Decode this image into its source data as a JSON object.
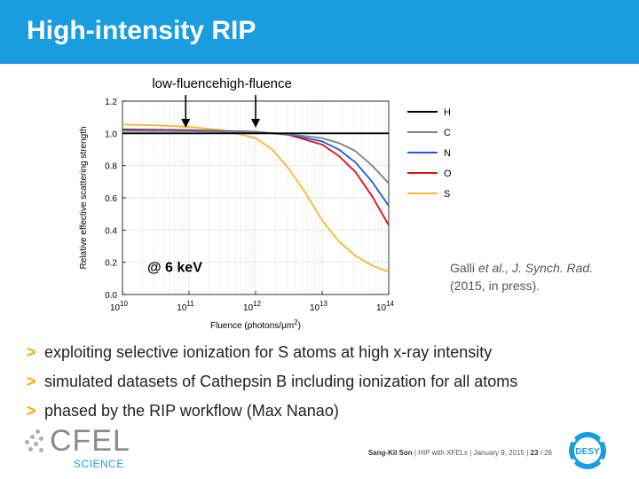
{
  "slide": {
    "title": "High-intensity RIP",
    "citation_authors": "Galli ",
    "citation_etal": "et al., J. Synch. Rad.",
    "citation_line2": "(2015, in press).",
    "bullet_marker": ">",
    "bullets": [
      "exploiting selective ionization for S atoms at high x-ray intensity",
      "simulated datasets of Cathepsin B including ionization for all atoms",
      "phased by the RIP workflow (Max Nanao)"
    ],
    "logo_text": "CFEL",
    "logo_subtext": "SCIENCE",
    "desy_text": "DESY",
    "footer": {
      "author": "Sang-Kil Son",
      "sep1": "|",
      "talk": "HIP with XFELs",
      "sep2": "|",
      "date": "January 9, 2015",
      "sep3": "|",
      "page": "23",
      "total": "/ 26"
    }
  },
  "colors": {
    "title_bg": "#1a9de0",
    "bullet_marker": "#f6a800"
  },
  "chart_data": {
    "type": "line",
    "x_scale": "log",
    "xlim": [
      10000000000.0,
      100000000000000.0
    ],
    "ylim": [
      0,
      1.2
    ],
    "xlabel_main": "Fluence (photons/",
    "xlabel_unit": "μm",
    "xlabel_sup": "2",
    "xlabel_end": ")",
    "ylabel": "Relative effective scattering strength",
    "x_ticks": [
      {
        "base": "10",
        "exp": "10"
      },
      {
        "base": "10",
        "exp": "11"
      },
      {
        "base": "10",
        "exp": "12"
      },
      {
        "base": "10",
        "exp": "13"
      },
      {
        "base": "10",
        "exp": "14"
      }
    ],
    "y_ticks": [
      "0.0",
      "0.2",
      "0.4",
      "0.6",
      "0.8",
      "1.0",
      "1.2"
    ],
    "grid": true,
    "legend_position": "right",
    "annotations": {
      "low": "low-fluence",
      "high": "high-fluence",
      "energy": "@ 6 keV"
    },
    "annotation_log_x": [
      10.95,
      12.0
    ],
    "series": [
      {
        "name": "H",
        "color": "#000000",
        "points": [
          [
            10,
            1.0
          ],
          [
            11,
            1.0
          ],
          [
            12,
            1.0
          ],
          [
            12.5,
            1.0
          ],
          [
            13,
            1.0
          ],
          [
            13.5,
            1.0
          ],
          [
            14,
            1.0
          ]
        ]
      },
      {
        "name": "C",
        "color": "#808080",
        "points": [
          [
            10,
            1.015
          ],
          [
            11,
            1.013
          ],
          [
            12,
            1.008
          ],
          [
            12.5,
            0.995
          ],
          [
            13,
            0.97
          ],
          [
            13.25,
            0.94
          ],
          [
            13.5,
            0.89
          ],
          [
            13.75,
            0.8
          ],
          [
            14,
            0.69
          ]
        ]
      },
      {
        "name": "N",
        "color": "#2255dd",
        "points": [
          [
            10,
            1.02
          ],
          [
            11,
            1.017
          ],
          [
            12,
            1.01
          ],
          [
            12.5,
            0.993
          ],
          [
            13,
            0.95
          ],
          [
            13.25,
            0.9
          ],
          [
            13.5,
            0.82
          ],
          [
            13.75,
            0.7
          ],
          [
            14,
            0.55
          ]
        ]
      },
      {
        "name": "O",
        "color": "#dd1111",
        "points": [
          [
            10,
            1.025
          ],
          [
            11,
            1.02
          ],
          [
            12,
            1.01
          ],
          [
            12.5,
            0.99
          ],
          [
            13,
            0.93
          ],
          [
            13.25,
            0.86
          ],
          [
            13.5,
            0.76
          ],
          [
            13.75,
            0.61
          ],
          [
            14,
            0.43
          ]
        ]
      },
      {
        "name": "S",
        "color": "#f5b82a",
        "points": [
          [
            10,
            1.055
          ],
          [
            10.5,
            1.05
          ],
          [
            11,
            1.04
          ],
          [
            11.5,
            1.02
          ],
          [
            12,
            0.97
          ],
          [
            12.25,
            0.9
          ],
          [
            12.5,
            0.78
          ],
          [
            12.75,
            0.63
          ],
          [
            13,
            0.46
          ],
          [
            13.25,
            0.33
          ],
          [
            13.5,
            0.24
          ],
          [
            13.75,
            0.18
          ],
          [
            14,
            0.14
          ]
        ]
      }
    ]
  }
}
